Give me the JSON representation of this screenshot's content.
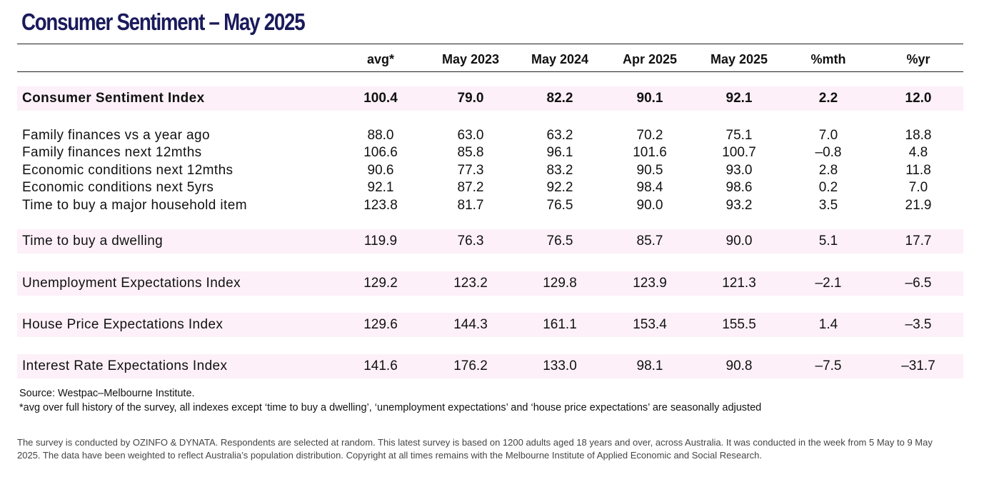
{
  "title": "Consumer Sentiment – May 2025",
  "columns": [
    "avg*",
    "May 2023",
    "May 2024",
    "Apr 2025",
    "May 2025",
    "%mth",
    "%yr"
  ],
  "rows": [
    {
      "label": "Consumer Sentiment Index",
      "values": [
        "100.4",
        "79.0",
        "82.2",
        "90.1",
        "92.1",
        "2.2",
        "12.0"
      ]
    },
    {
      "label": "Family finances vs a year ago",
      "values": [
        "88.0",
        "63.0",
        "63.2",
        "70.2",
        "75.1",
        "7.0",
        "18.8"
      ]
    },
    {
      "label": "Family finances next 12mths",
      "values": [
        "106.6",
        "85.8",
        "96.1",
        "101.6",
        "100.7",
        "–0.8",
        "4.8"
      ]
    },
    {
      "label": "Economic conditions next 12mths",
      "values": [
        "90.6",
        "77.3",
        "83.2",
        "90.5",
        "93.0",
        "2.8",
        "11.8"
      ]
    },
    {
      "label": "Economic conditions next 5yrs",
      "values": [
        "92.1",
        "87.2",
        "92.2",
        "98.4",
        "98.6",
        "0.2",
        "7.0"
      ]
    },
    {
      "label": "Time to buy a major household item",
      "values": [
        "123.8",
        "81.7",
        "76.5",
        "90.0",
        "93.2",
        "3.5",
        "21.9"
      ]
    },
    {
      "label": "Time to buy a dwelling",
      "values": [
        "119.9",
        "76.3",
        "76.5",
        "85.7",
        "90.0",
        "5.1",
        "17.7"
      ]
    },
    {
      "label": "Unemployment Expectations Index",
      "values": [
        "129.2",
        "123.2",
        "129.8",
        "123.9",
        "121.3",
        "–2.1",
        "–6.5"
      ]
    },
    {
      "label": "House Price Expectations Index",
      "values": [
        "129.6",
        "144.3",
        "161.1",
        "153.4",
        "155.5",
        "1.4",
        "–3.5"
      ]
    },
    {
      "label": "Interest Rate Expectations Index",
      "values": [
        "141.6",
        "176.2",
        "133.0",
        "98.1",
        "90.8",
        "–7.5",
        "–31.7"
      ]
    }
  ],
  "source": "Source: Westpac–Melbourne Institute.",
  "note": "*avg over full history of the survey, all indexes except ‘time to buy a dwelling’, ‘unemployment expectations’ and ‘house price expectations’ are seasonally adjusted",
  "footer": "The survey is conducted by OZINFO & DYNATA. Respondents are selected at random. This latest survey is based on 1200 adults aged 18 years and over, across Australia. It was conducted in the week from 5 May to 9 May 2025. The data have been weighted to reflect Australia’s population distribution. Copyright at all times remains with the Melbourne Institute of Applied Economic and Social Research.",
  "colors": {
    "title": "#1a1a5c",
    "band": "#fdf0f8",
    "rule": "#222222"
  }
}
